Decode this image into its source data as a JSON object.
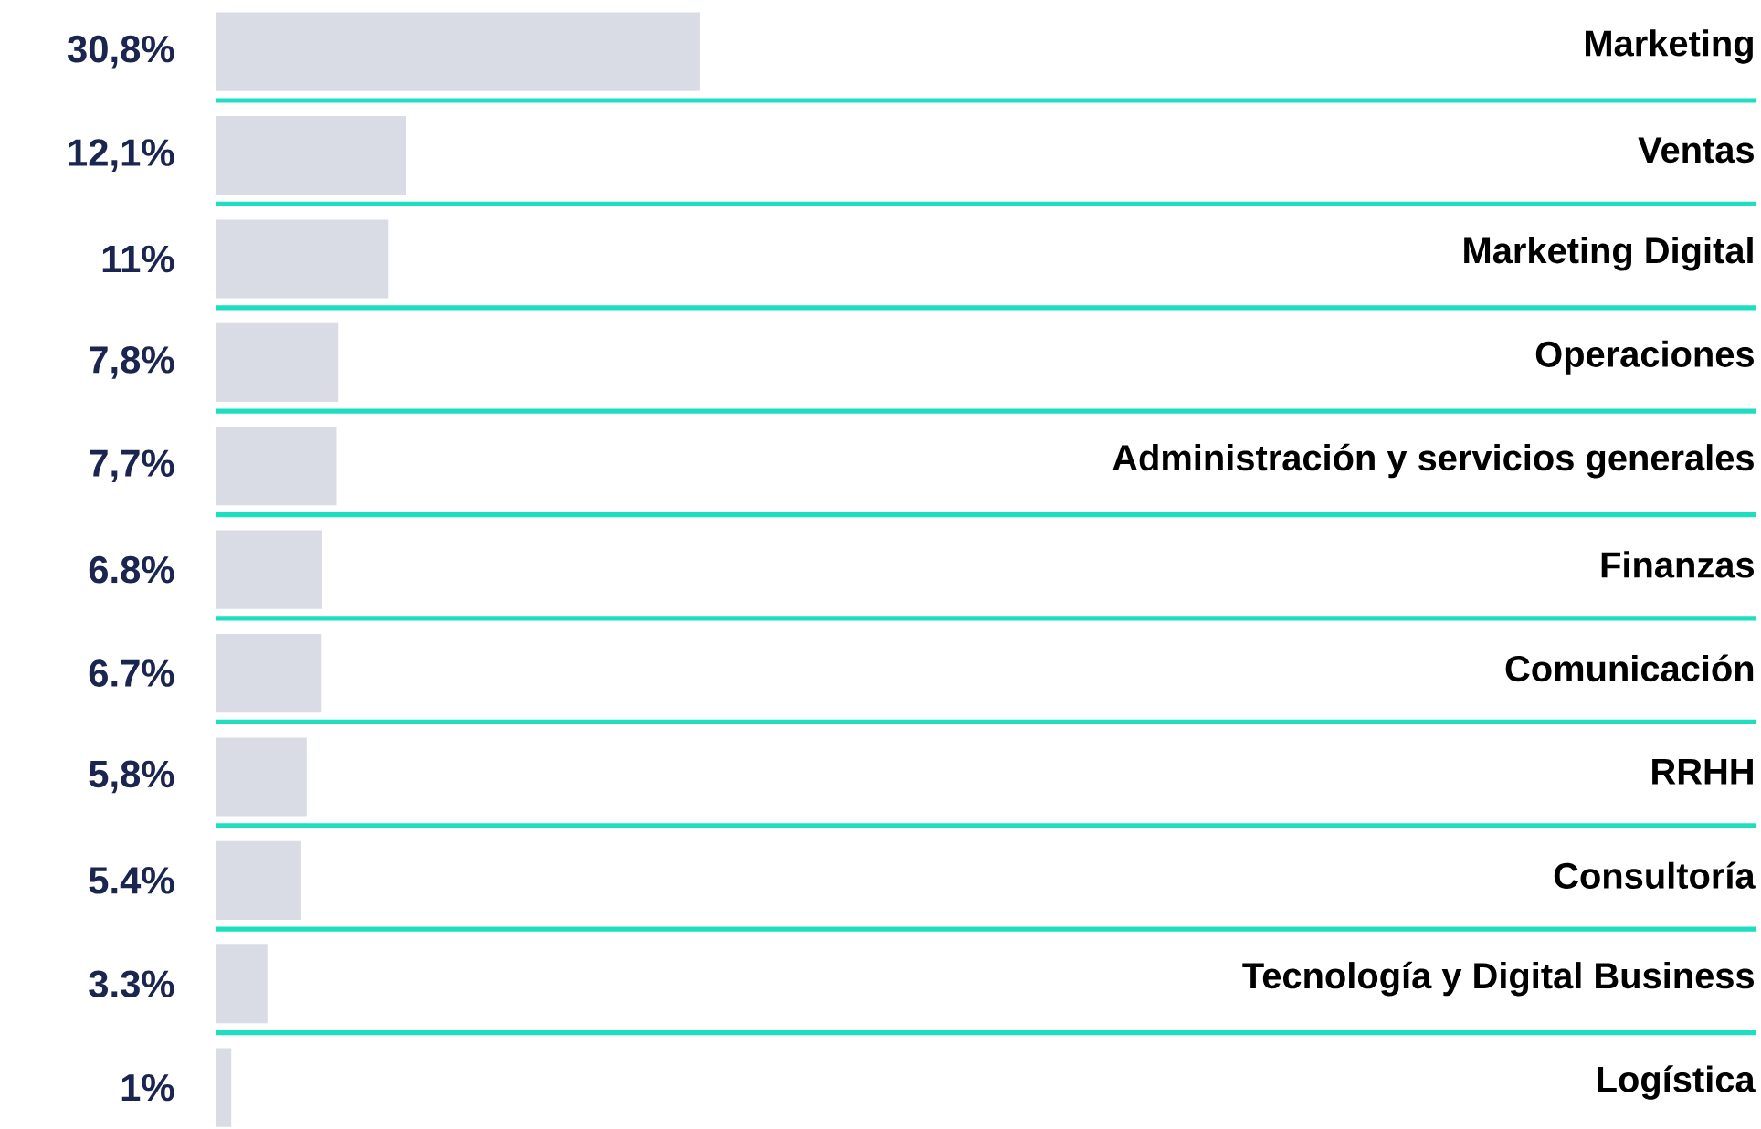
{
  "chart_data": {
    "type": "bar",
    "orientation": "horizontal",
    "categories": [
      "Marketing",
      "Ventas",
      "Marketing Digital",
      "Operaciones",
      "Administración y servicios generales",
      "Finanzas",
      "Comunicación",
      "RRHH",
      "Consultoría",
      "Tecnología y Digital Business",
      "Logística"
    ],
    "values": [
      30.8,
      12.1,
      11,
      7.8,
      7.7,
      6.8,
      6.7,
      5.8,
      5.4,
      3.3,
      1
    ],
    "value_labels": [
      "30,8%",
      "12,1%",
      "11%",
      "7,8%",
      "7,7%",
      "6.8%",
      "6.7%",
      "5,8%",
      "5.4%",
      "3.3%",
      "1%"
    ],
    "color": "#d9dce4",
    "xlim": [
      0,
      98
    ],
    "grid": "y"
  }
}
